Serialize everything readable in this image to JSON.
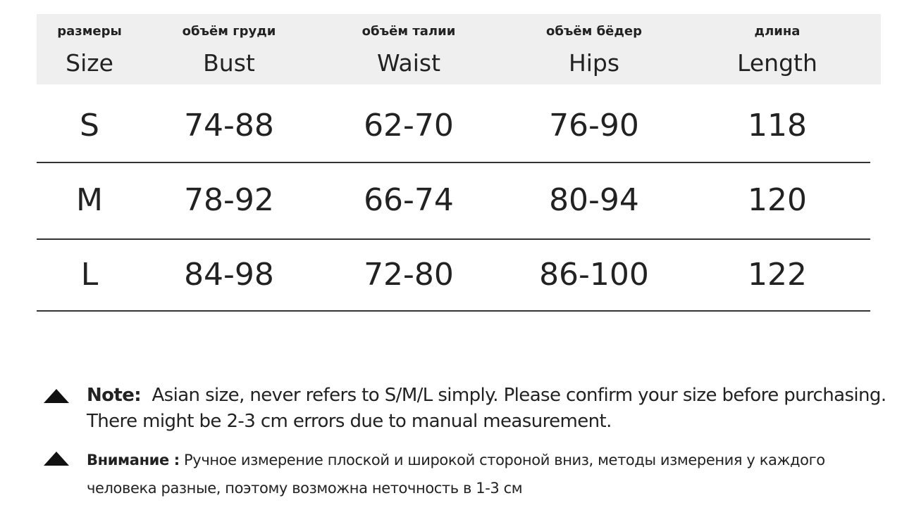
{
  "table": {
    "columns": [
      {
        "ru": "размеры",
        "en": "Size"
      },
      {
        "ru": "объём груди",
        "en": "Bust"
      },
      {
        "ru": "объём талии",
        "en": "Waist"
      },
      {
        "ru": "объём бёдер",
        "en": "Hips"
      },
      {
        "ru": "длина",
        "en": "Length"
      }
    ],
    "rows": [
      [
        "S",
        "74-88",
        "62-70",
        "76-90",
        "118"
      ],
      [
        "M",
        "78-92",
        "66-74",
        "80-94",
        "120"
      ],
      [
        "L",
        "84-98",
        "72-80",
        "86-100",
        "122"
      ]
    ]
  },
  "notes": [
    {
      "label": "Note:",
      "text": "Asian size, never refers to S/M/L simply. Please confirm your size before purchasing. There might be 2-3 cm errors due to manual measurement."
    },
    {
      "label": "Внимание :",
      "text": "Ручное измерение плоской и широкой стороной вниз, методы измерения у каждого человека разные, поэтому возможна неточность в 1-3 см"
    }
  ]
}
